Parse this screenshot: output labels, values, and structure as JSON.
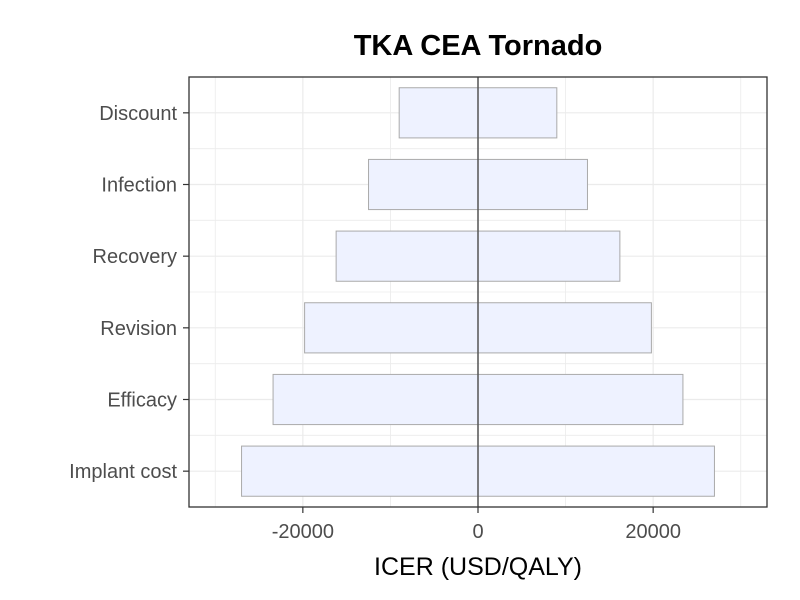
{
  "chart_data": {
    "type": "bar",
    "orientation": "horizontal",
    "style": "tornado",
    "title": "TKA CEA Tornado",
    "xlabel": "ICER (USD/QALY)",
    "ylabel": "",
    "xlim": [
      -33000,
      33000
    ],
    "xticks": [
      -20000,
      0,
      20000
    ],
    "xtick_labels": [
      "-20000",
      "0",
      "20000"
    ],
    "grid": true,
    "legend": "none",
    "reference_line": 0,
    "categories": [
      "Discount",
      "Infection",
      "Recovery",
      "Revision",
      "Efficacy",
      "Implant cost"
    ],
    "low": [
      -9000,
      -12500,
      -16200,
      -19800,
      -23400,
      -27000
    ],
    "high": [
      9000,
      12500,
      16200,
      19800,
      23400,
      27000
    ],
    "colors": {
      "bar_fill": "#eef2ff",
      "bar_stroke": "#aaaaaa",
      "grid": "#ebebeb",
      "panel_border": "#333333",
      "zero_line": "#555555"
    }
  }
}
